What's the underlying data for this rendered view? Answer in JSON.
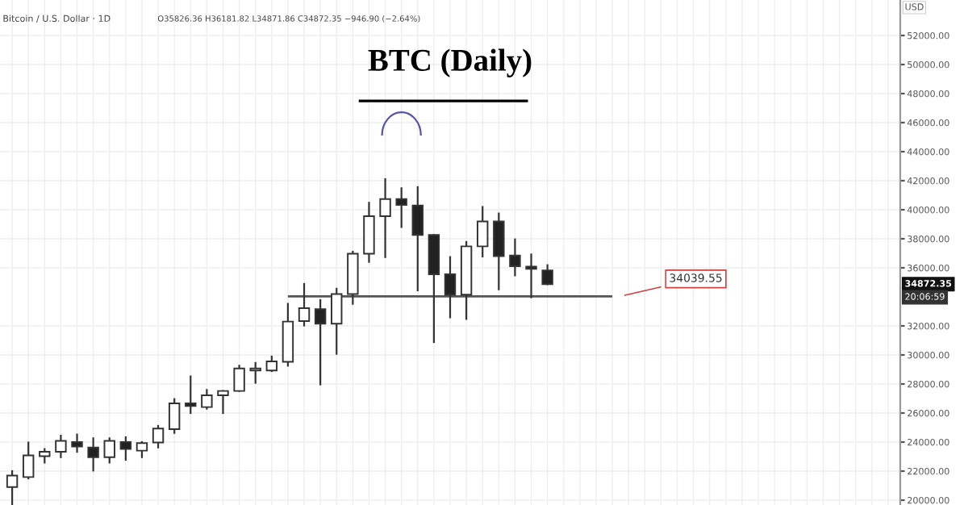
{
  "chart_data": {
    "type": "candlestick",
    "title": "BTC (Daily)",
    "ylabel": "USD",
    "annotations": [
      "Bitcoin / U.S. Dollar · 1D",
      "O35826.36 H36181.82 L34871.86 C34872.35 −946.90 (−2.64%)",
      "34872.35",
      "20:06:59"
    ],
    "categories": [
      null,
      null,
      null,
      null,
      null,
      null,
      null,
      null,
      null,
      null,
      null,
      null,
      null,
      null,
      null,
      null,
      null,
      null,
      null,
      null,
      null,
      null,
      null,
      null,
      null,
      null,
      null,
      null,
      null,
      null,
      null,
      null,
      null,
      null,
      null,
      null,
      null,
      null,
      null,
      null,
      null,
      null,
      null,
      null,
      null,
      null,
      null,
      null,
      null,
      null,
      null,
      null,
      null,
      null,
      null
    ],
    "ohlc": [
      [
        20900,
        22000,
        19700,
        21700
      ],
      [
        21590,
        23970,
        21500,
        23080
      ],
      [
        23030,
        23520,
        22590,
        23330
      ],
      [
        23330,
        24440,
        22960,
        24080
      ],
      [
        24000,
        24520,
        23330,
        23700
      ],
      [
        23630,
        24260,
        22040,
        22960
      ],
      [
        22960,
        24260,
        22590,
        24080
      ],
      [
        24000,
        24330,
        22780,
        23520
      ],
      [
        23410,
        24000,
        22960,
        23930
      ],
      [
        23970,
        25110,
        23630,
        24930
      ],
      [
        24890,
        26960,
        24630,
        26670
      ],
      [
        26670,
        28520,
        26000,
        26480
      ],
      [
        26410,
        27590,
        26300,
        27220
      ],
      [
        27220,
        27520,
        26000,
        27520
      ],
      [
        27520,
        29260,
        27520,
        29070
      ],
      [
        28930,
        29450,
        28080,
        29070
      ],
      [
        28930,
        29890,
        28890,
        29560
      ],
      [
        29530,
        33520,
        29260,
        32300
      ],
      [
        32330,
        34890,
        32030,
        33220
      ],
      [
        33150,
        33780,
        27970,
        32150
      ],
      [
        32150,
        34560,
        30080,
        34190
      ],
      [
        34190,
        37110,
        33520,
        36970
      ],
      [
        36970,
        40480,
        36410,
        39560
      ],
      [
        39560,
        42110,
        36740,
        40740
      ],
      [
        40740,
        41480,
        38810,
        40330
      ],
      [
        40300,
        41560,
        34450,
        38260
      ],
      [
        38260,
        38260,
        30890,
        35560
      ],
      [
        35560,
        36740,
        32590,
        34150
      ],
      [
        34150,
        37780,
        32480,
        37480
      ],
      [
        37480,
        40190,
        36780,
        39190
      ],
      [
        39190,
        39740,
        34520,
        36810
      ],
      [
        36850,
        37960,
        35480,
        36110
      ],
      [
        36080,
        36920,
        33970,
        35930
      ],
      [
        35826.36,
        36181.82,
        34871.86,
        34872.35
      ],
      null,
      null,
      null,
      null,
      null,
      null,
      null,
      null,
      null,
      null,
      null,
      null,
      null,
      null,
      null,
      null,
      null,
      null,
      null,
      null,
      null
    ],
    "ylim": [
      19667,
      54444
    ],
    "yticks": [
      {
        "value": 20000,
        "label": "20000.00"
      },
      {
        "value": 22000,
        "label": "22000.00"
      },
      {
        "value": 24000,
        "label": "24000.00"
      },
      {
        "value": 26000,
        "label": "26000.00"
      },
      {
        "value": 28000,
        "label": "28000.00"
      },
      {
        "value": 30000,
        "label": "30000.00"
      },
      {
        "value": 32000,
        "label": "32000.00"
      },
      {
        "value": 36000,
        "label": "36000.00"
      },
      {
        "value": 38000,
        "label": "38000.00"
      },
      {
        "value": 40000,
        "label": "40000.00"
      },
      {
        "value": 42000,
        "label": "42000.00"
      },
      {
        "value": 44000,
        "label": "44000.00"
      },
      {
        "value": 46000,
        "label": "46000.00"
      },
      {
        "value": 48000,
        "label": "48000.00"
      },
      {
        "value": 50000,
        "label": "50000.00"
      },
      {
        "value": 52000,
        "label": "52000.00"
      }
    ],
    "ref_lines": [
      {
        "axis": "y",
        "value": 34039.55,
        "label": "34039.55",
        "color": "#555555"
      }
    ],
    "grid": true
  }
}
